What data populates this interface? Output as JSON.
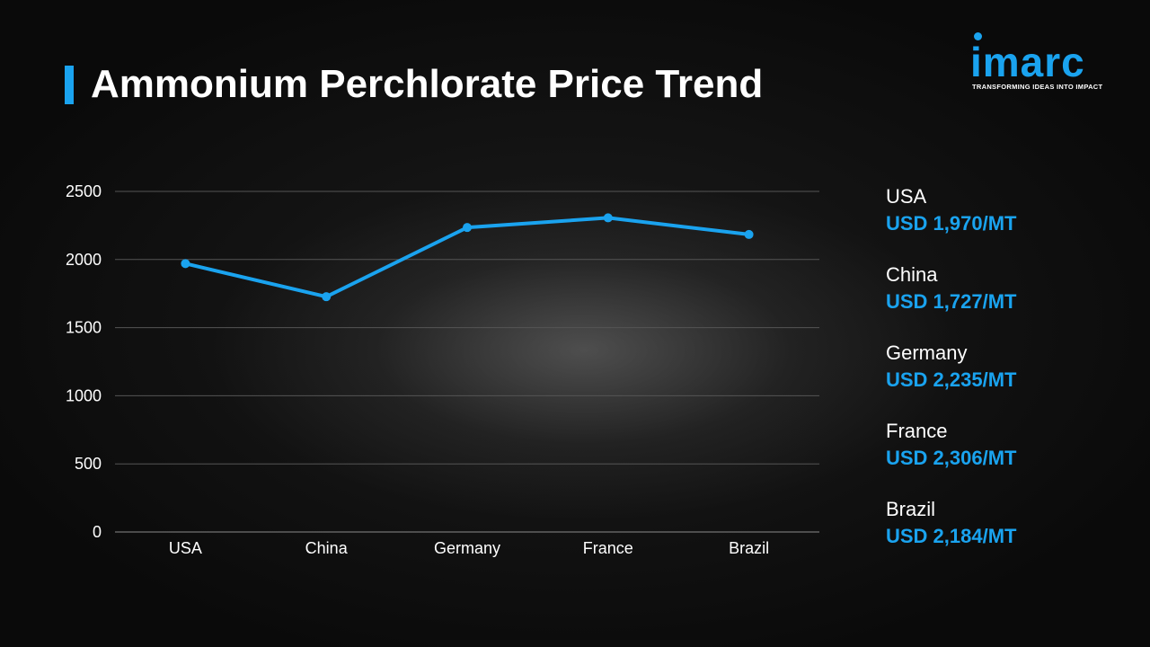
{
  "title": "Ammonium Perchlorate Price Trend",
  "logo": {
    "wordmark": "imarc",
    "tagline": "TRANSFORMING IDEAS INTO IMPACT"
  },
  "colors": {
    "accent": "#1aa3ef",
    "background": "#0c0c0c",
    "text": "#ffffff",
    "grid": "#555555"
  },
  "chart_data": {
    "type": "line",
    "categories": [
      "USA",
      "China",
      "Germany",
      "France",
      "Brazil"
    ],
    "series": [
      {
        "values": [
          1970,
          1727,
          2235,
          2306,
          2184
        ]
      }
    ],
    "yticks": [
      "0",
      "500",
      "1000",
      "1500",
      "2000",
      "2500"
    ],
    "ylim": [
      0,
      2500
    ],
    "grid": true,
    "line_color": "#1aa3ef"
  },
  "legend": [
    {
      "country": "USA",
      "price": "USD 1,970/MT"
    },
    {
      "country": "China",
      "price": "USD 1,727/MT"
    },
    {
      "country": "Germany",
      "price": "USD 2,235/MT"
    },
    {
      "country": "France",
      "price": "USD 2,306/MT"
    },
    {
      "country": "Brazil",
      "price": "USD 2,184/MT"
    }
  ]
}
